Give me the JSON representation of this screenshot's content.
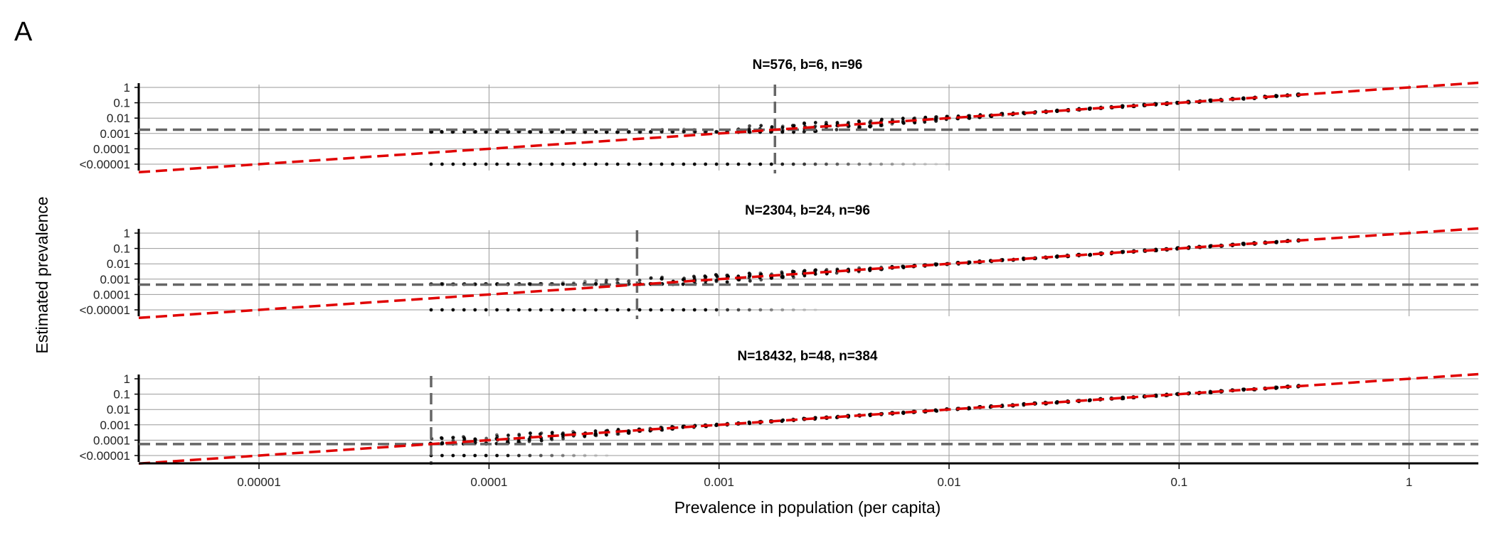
{
  "panel_label": "A",
  "colors": {
    "points": "#000000",
    "fit_line": "#e00000",
    "threshold_line": "#666666",
    "grid": "#999999",
    "axis": "#000000"
  },
  "chart_data": {
    "type": "scatter",
    "xlabel": "Prevalence in population (per capita)",
    "ylabel": "Estimated prevalence",
    "x_scale": "log",
    "y_scale": "log",
    "xlim": [
      3e-06,
      2
    ],
    "ylim": [
      1.5e-06,
      2
    ],
    "x_ticks": [
      1e-05,
      0.0001,
      0.001,
      0.01,
      0.1,
      1
    ],
    "x_tick_labels": [
      "0.00001",
      "0.0001",
      "0.001",
      "0.01",
      "0.1",
      "1"
    ],
    "y_ticks": [
      1e-05,
      0.0001,
      0.001,
      0.01,
      0.1,
      1
    ],
    "y_tick_labels": [
      "<0.00001",
      "0.0001",
      "0.001",
      "0.01",
      "0.1",
      "1"
    ],
    "grid": true,
    "fit_line": {
      "style": "dashed",
      "relation": "y = x"
    },
    "facets": [
      {
        "title": "N=576, b=6, n=96",
        "v_threshold": 0.00175,
        "h_threshold": 0.00175,
        "x_range": [
          5.6e-05,
          0.33
        ],
        "detection_limit": 0.0012,
        "zero_points_until": 0.0017,
        "zero_points_fade_until": 0.01
      },
      {
        "title": "N=2304, b=24, n=96",
        "v_threshold": 0.00044,
        "h_threshold": 0.00044,
        "x_range": [
          5.6e-05,
          0.33
        ],
        "detection_limit": 0.00045,
        "zero_points_until": 0.0009,
        "zero_points_fade_until": 0.0028
      },
      {
        "title": "N=18432, b=48, n=384",
        "v_threshold": 5.6e-05,
        "h_threshold": 5.6e-05,
        "x_range": [
          5.6e-05,
          0.33
        ],
        "detection_limit": 5.6e-05,
        "zero_points_until": 0.00012,
        "zero_points_fade_until": 0.00034
      }
    ]
  }
}
